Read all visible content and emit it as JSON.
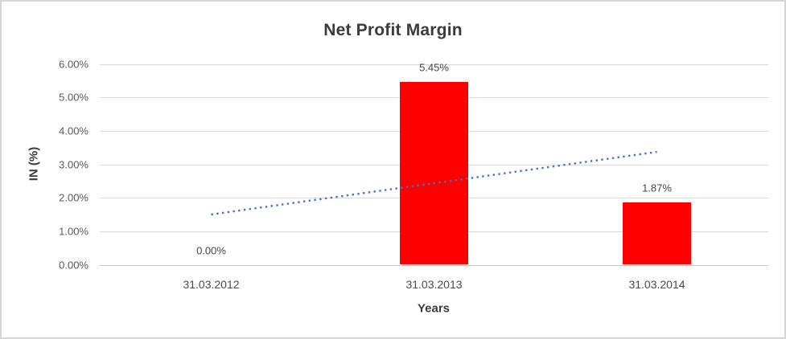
{
  "chart": {
    "title": "Net Profit Margin",
    "y_axis_title": "IN (%)",
    "x_axis_title": "Years",
    "colors": {
      "bar": "#ff0000",
      "trendline": "#4472c4",
      "gridline": "#d9d9d9",
      "axis_line": "#c9c9c9",
      "tick_text": "#595959",
      "label_text": "#444444",
      "title_text": "#3b3b3b",
      "frame_border": "#d5d5d5"
    }
  },
  "chart_data": {
    "type": "bar",
    "title": "Net Profit Margin",
    "xlabel": "Years",
    "ylabel": "IN (%)",
    "categories": [
      "31.03.2012",
      "31.03.2013",
      "31.03.2014"
    ],
    "values": [
      0.0,
      5.45,
      1.87
    ],
    "data_labels": [
      "0.00%",
      "5.45%",
      "1.87%"
    ],
    "y_ticks": [
      "6.00%",
      "5.00%",
      "4.00%",
      "3.00%",
      "2.00%",
      "1.00%",
      "0.00%"
    ],
    "ylim": [
      0,
      6
    ],
    "grid": true,
    "legend": "none",
    "bar_color": "#ff0000",
    "trendline": {
      "type": "linear",
      "style": "dotted",
      "color": "#4472c4",
      "start_value": 1.5,
      "end_value": 3.37
    }
  }
}
